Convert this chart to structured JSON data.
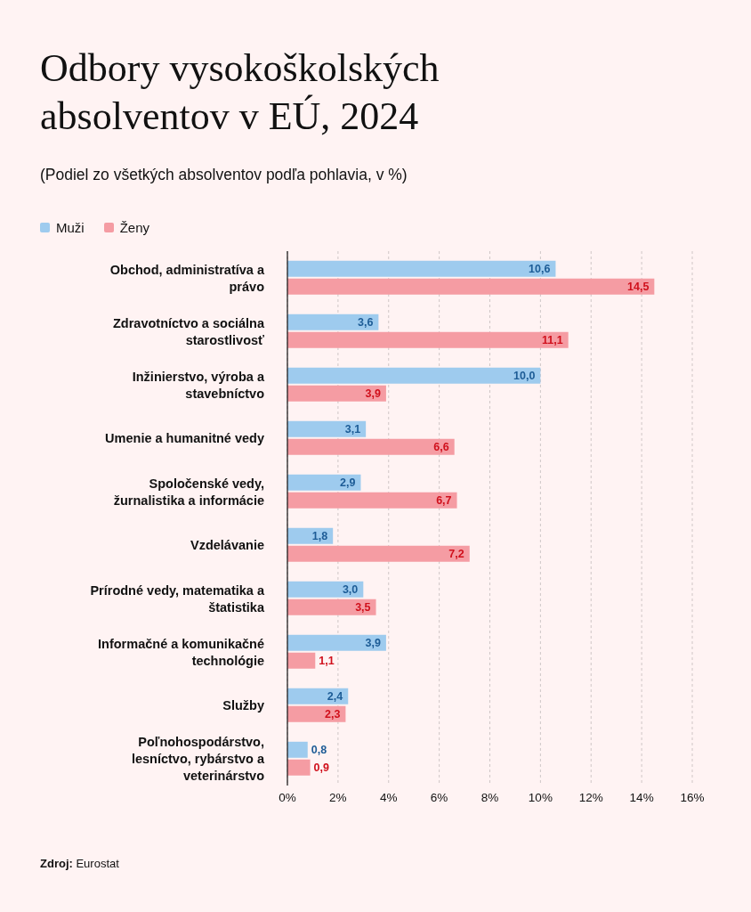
{
  "chart_data": {
    "type": "bar",
    "orientation": "horizontal",
    "title": "Odbory vysokoškolských absolventov v EÚ, 2024",
    "subtitle": "(Podiel zo všetkých absolventov podľa pohlavia, v %)",
    "categories": [
      "Obchod, administratíva a právo",
      "Zdravotníctvo a sociálna starostlivosť",
      "Inžinierstvo, výroba a stavebníctvo",
      "Umenie a humanitné vedy",
      "Spoločenské vedy, žurnalistika a informácie",
      "Vzdelávanie",
      "Prírodné vedy, matematika a štatistika",
      "Informačné a komunikačné technológie",
      "Služby",
      "Poľnohospodárstvo, lesníctvo, rybárstvo a veterinárstvo"
    ],
    "series": [
      {
        "name": "Muži",
        "color": "#9ecbee",
        "values": [
          10.6,
          3.6,
          10.0,
          3.1,
          2.9,
          1.8,
          3.0,
          3.9,
          2.4,
          0.8
        ],
        "value_labels": [
          "10,6",
          "3,6",
          "10,0",
          "3,1",
          "2,9",
          "1,8",
          "3,0",
          "3,9",
          "2,4",
          "0,8"
        ]
      },
      {
        "name": "Ženy",
        "color": "#f59ca3",
        "values": [
          14.5,
          11.1,
          3.9,
          6.6,
          6.7,
          7.2,
          3.5,
          1.1,
          2.3,
          0.9
        ],
        "value_labels": [
          "14,5",
          "11,1",
          "3,9",
          "6,6",
          "6,7",
          "7,2",
          "3,5",
          "1,1",
          "2,3",
          "0,9"
        ]
      }
    ],
    "xlim": [
      0,
      16
    ],
    "xticks": [
      {
        "value": 0,
        "label": "0%"
      },
      {
        "value": 2,
        "label": "2%"
      },
      {
        "value": 4,
        "label": "4%"
      },
      {
        "value": 6,
        "label": "6%"
      },
      {
        "value": 8,
        "label": "8%"
      },
      {
        "value": 10,
        "label": "10%"
      },
      {
        "value": 12,
        "label": "12%"
      },
      {
        "value": 14,
        "label": "14%"
      },
      {
        "value": 16,
        "label": "16%"
      }
    ],
    "grid": "x",
    "legend": "top left",
    "annotations": [
      "Zdroj: Eurostat"
    ]
  }
}
